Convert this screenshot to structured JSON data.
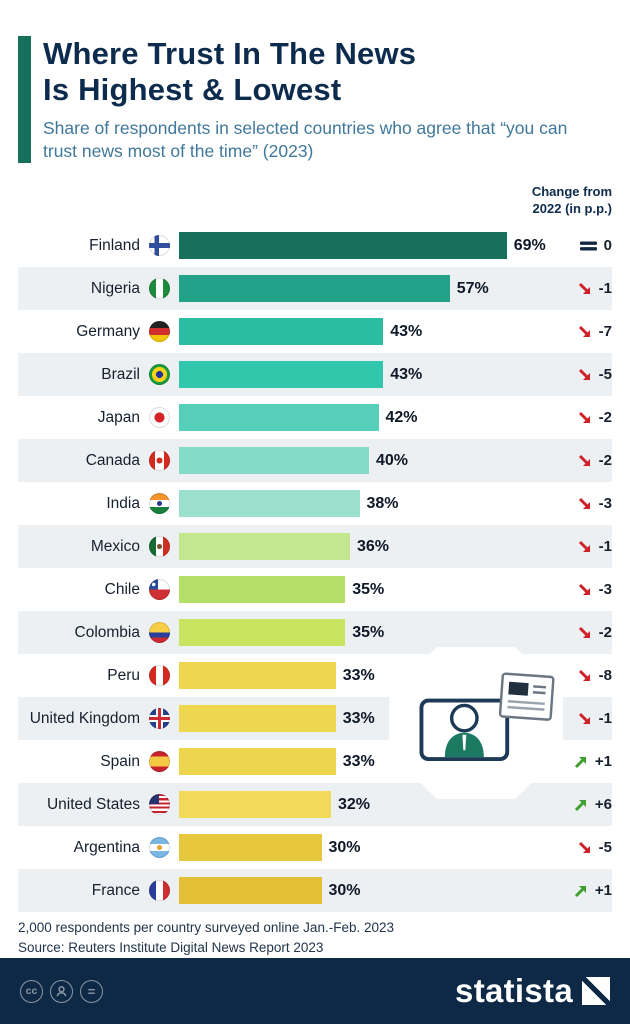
{
  "header": {
    "title_line1": "Where Trust In The News",
    "title_line2": "Is Highest & Lowest",
    "subtitle": "Share of respondents in selected countries who agree that “you can trust news most of the time” (2023)",
    "change_header_line1": "Change from",
    "change_header_line2": "2022 (in p.p.)"
  },
  "chart_data": {
    "type": "bar",
    "title": "Where Trust In The News Is Highest & Lowest",
    "subtitle": "Share of respondents in selected countries who agree that “you can trust news most of the time” (2023)",
    "unit": "%",
    "xlim": [
      0,
      69
    ],
    "orientation": "horizontal",
    "rows": [
      {
        "country": "Finland",
        "flag": "finland",
        "value": 69,
        "value_label": "69%",
        "change": 0,
        "change_label": "0",
        "direction": "same",
        "bar_color": "#17705c"
      },
      {
        "country": "Nigeria",
        "flag": "nigeria",
        "value": 57,
        "value_label": "57%",
        "change": -1,
        "change_label": "-1",
        "direction": "down",
        "bar_color": "#21a289"
      },
      {
        "country": "Germany",
        "flag": "germany",
        "value": 43,
        "value_label": "43%",
        "change": -7,
        "change_label": "-7",
        "direction": "down",
        "bar_color": "#2abda3"
      },
      {
        "country": "Brazil",
        "flag": "brazil",
        "value": 43,
        "value_label": "43%",
        "change": -5,
        "change_label": "-5",
        "direction": "down",
        "bar_color": "#31c7ad"
      },
      {
        "country": "Japan",
        "flag": "japan",
        "value": 42,
        "value_label": "42%",
        "change": -2,
        "change_label": "-2",
        "direction": "down",
        "bar_color": "#55cfb8"
      },
      {
        "country": "Canada",
        "flag": "canada",
        "value": 40,
        "value_label": "40%",
        "change": -2,
        "change_label": "-2",
        "direction": "down",
        "bar_color": "#84dbc7"
      },
      {
        "country": "India",
        "flag": "india",
        "value": 38,
        "value_label": "38%",
        "change": -3,
        "change_label": "-3",
        "direction": "down",
        "bar_color": "#9ae0cd"
      },
      {
        "country": "Mexico",
        "flag": "mexico",
        "value": 36,
        "value_label": "36%",
        "change": -1,
        "change_label": "-1",
        "direction": "down",
        "bar_color": "#c3e78f"
      },
      {
        "country": "Chile",
        "flag": "chile",
        "value": 35,
        "value_label": "35%",
        "change": -3,
        "change_label": "-3",
        "direction": "down",
        "bar_color": "#b4e06a"
      },
      {
        "country": "Colombia",
        "flag": "colombia",
        "value": 35,
        "value_label": "35%",
        "change": -2,
        "change_label": "-2",
        "direction": "down",
        "bar_color": "#c9e45f"
      },
      {
        "country": "Peru",
        "flag": "peru",
        "value": 33,
        "value_label": "33%",
        "change": -8,
        "change_label": "-8",
        "direction": "down",
        "bar_color": "#efd64f"
      },
      {
        "country": "United Kingdom",
        "flag": "uk",
        "value": 33,
        "value_label": "33%",
        "change": -1,
        "change_label": "-1",
        "direction": "down",
        "bar_color": "#efd64f"
      },
      {
        "country": "Spain",
        "flag": "spain",
        "value": 33,
        "value_label": "33%",
        "change": 1,
        "change_label": "+1",
        "direction": "up",
        "bar_color": "#eed54e"
      },
      {
        "country": "United States",
        "flag": "usa",
        "value": 32,
        "value_label": "32%",
        "change": 6,
        "change_label": "+6",
        "direction": "up",
        "bar_color": "#f1da58"
      },
      {
        "country": "Argentina",
        "flag": "argentina",
        "value": 30,
        "value_label": "30%",
        "change": -5,
        "change_label": "-5",
        "direction": "down",
        "bar_color": "#e6c73d"
      },
      {
        "country": "France",
        "flag": "france",
        "value": 30,
        "value_label": "30%",
        "change": 1,
        "change_label": "+1",
        "direction": "up",
        "bar_color": "#e2bf35"
      }
    ],
    "colors": {
      "negative_arrow": "#cf2127",
      "positive_arrow": "#3f9f2f",
      "neutral": "#132742",
      "stripe": "#edf0f2",
      "accent": "#17705c"
    }
  },
  "footer": {
    "note": "2,000 respondents per country surveyed online Jan.-Feb. 2023",
    "source": "Source: Reuters Institute Digital News Report 2023"
  },
  "license": {
    "cc_label": "cc",
    "equals_label": "="
  },
  "brand": {
    "name": "statista"
  }
}
